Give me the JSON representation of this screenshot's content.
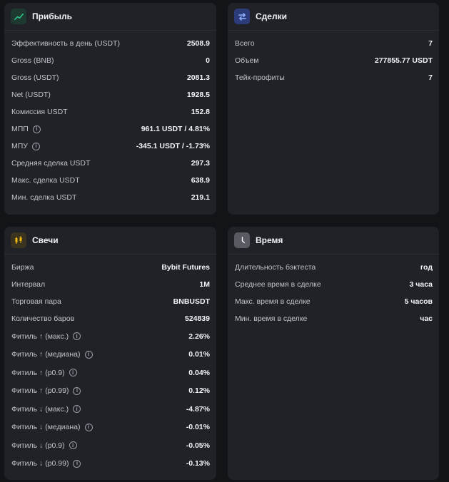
{
  "profit": {
    "title": "Прибыль",
    "icon": "trending-up-icon",
    "accent": "#2ebd85",
    "rows": [
      {
        "label": "Эффективность в день (USDT)",
        "value": "2508.9"
      },
      {
        "label": "Gross (BNB)",
        "value": "0"
      },
      {
        "label": "Gross (USDT)",
        "value": "2081.3"
      },
      {
        "label": "Net (USDT)",
        "value": "1928.5"
      },
      {
        "label": "Комиссия USDT",
        "value": "152.8"
      },
      {
        "label": "МПП",
        "value": "961.1 USDT / 4.81%",
        "info": true
      },
      {
        "label": "МПУ",
        "value": "-345.1 USDT / -1.73%",
        "info": true
      },
      {
        "label": "Средняя сделка USDT",
        "value": "297.3"
      },
      {
        "label": "Макс. сделка USDT",
        "value": "638.9"
      },
      {
        "label": "Мин. сделка USDT",
        "value": "219.1"
      }
    ]
  },
  "trades": {
    "title": "Сделки",
    "icon": "swap-arrows-icon",
    "accent": "#4f7cf7",
    "rows": [
      {
        "label": "Всего",
        "value": "7"
      },
      {
        "label": "Объем",
        "value": "277855.77 USDT"
      },
      {
        "label": "Тейк-профиты",
        "value": "7"
      }
    ]
  },
  "candles": {
    "title": "Свечи",
    "icon": "candlestick-icon",
    "accent": "#f0b90b",
    "rows": [
      {
        "label": "Биржа",
        "value": "Bybit Futures"
      },
      {
        "label": "Интервал",
        "value": "1M"
      },
      {
        "label": "Торговая пара",
        "value": "BNBUSDT"
      },
      {
        "label": "Количество баров",
        "value": "524839"
      },
      {
        "label": "Фитиль ↑ (макс.)",
        "value": "2.26%",
        "info": true
      },
      {
        "label": "Фитиль ↑ (медиана)",
        "value": "0.01%",
        "info": true
      },
      {
        "label": "Фитиль ↑ (p0.9)",
        "value": "0.04%",
        "info": true
      },
      {
        "label": "Фитиль ↑ (p0.99)",
        "value": "0.12%",
        "info": true
      },
      {
        "label": "Фитиль ↓ (макс.)",
        "value": "-4.87%",
        "info": true
      },
      {
        "label": "Фитиль ↓ (медиана)",
        "value": "-0.01%",
        "info": true
      },
      {
        "label": "Фитиль ↓ (p0.9)",
        "value": "-0.05%",
        "info": true
      },
      {
        "label": "Фитиль ↓ (p0.99)",
        "value": "-0.13%",
        "info": true
      }
    ]
  },
  "time": {
    "title": "Время",
    "icon": "clock-icon",
    "accent": "#c9cad0",
    "rows": [
      {
        "label": "Длительность бэктеста",
        "value": "год"
      },
      {
        "label": "Среднее время в сделке",
        "value": "3 часа"
      },
      {
        "label": "Макс. время в сделке",
        "value": "5 часов"
      },
      {
        "label": "Мин. время в сделке",
        "value": "час"
      }
    ]
  }
}
